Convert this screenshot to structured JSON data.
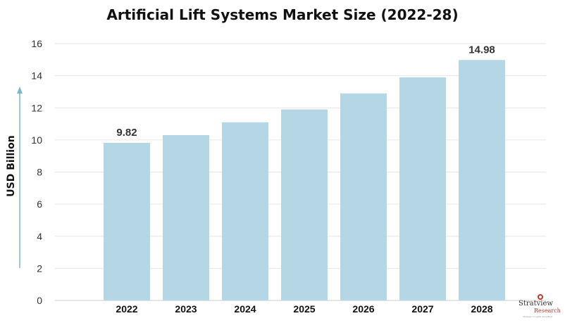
{
  "chart_data": {
    "type": "bar",
    "title": "Artificial Lift Systems Market Size (2022-28)",
    "xlabel": "",
    "ylabel": "USD Billion",
    "categories": [
      "2022",
      "2023",
      "2024",
      "2025",
      "2026",
      "2027",
      "2028"
    ],
    "values": [
      9.82,
      10.3,
      11.1,
      11.9,
      12.9,
      13.9,
      14.98
    ],
    "data_labels": [
      {
        "category": "2022",
        "text": "9.82"
      },
      {
        "category": "2028",
        "text": "14.98"
      }
    ],
    "ylim": [
      0,
      16
    ],
    "yticks": [
      0,
      2,
      4,
      6,
      8,
      10,
      12,
      14,
      16
    ],
    "grid": true,
    "bar_color": "#b5d6e5",
    "arrow_color": "#7fb3cf"
  },
  "logo": {
    "name": "Stratview",
    "sub": "Research",
    "tagline": "Strategic Insights Simplified"
  }
}
